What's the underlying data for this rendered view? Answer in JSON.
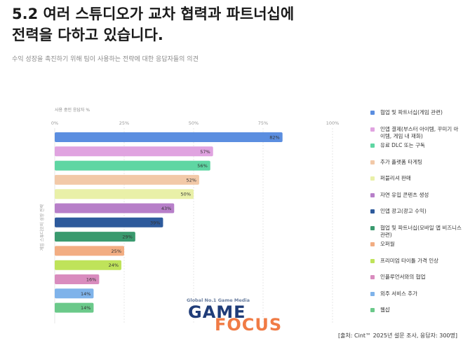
{
  "header": {
    "title": "5.2 여러 스튜디오가 교차 협력과 파트너십에 전력을 다하고 있습니다.",
    "subtitle": "수익 성장을 촉진하기 위해 팀이 사용하는 전략에 대한 응답자들의 의견"
  },
  "chart_data": {
    "type": "bar",
    "orientation": "horizontal",
    "xlabel": "사용 중인 응답자 %",
    "ylabel": "게임 스튜디오의 성장 전략",
    "xlim": [
      0,
      100
    ],
    "xticks": [
      "0%",
      "25%",
      "50%",
      "75%",
      "100%"
    ],
    "grid": true,
    "legend_position": "right",
    "categories": [
      "협업 및 파트너십(게임 관련)",
      "인앱 결제(부스터 아이템, 꾸미기 아이템, 게임 내 재화)",
      "유료 DLC 또는 구독",
      "추가 플랫폼 타게팅",
      "퍼블리셔 판매",
      "자연 유입 콘텐츠 생성",
      "인앱 광고(광고 수익)",
      "협업 및 파트너십(모바일 앱 비즈니스 관련)",
      "오퍼월",
      "프리미엄 타이틀 가격 인상",
      "인플루언서와의 협업",
      "외주 서비스 추가",
      "웹샵"
    ],
    "values": [
      82,
      57,
      56,
      52,
      50,
      43,
      39,
      29,
      25,
      24,
      16,
      14,
      14
    ],
    "labels": [
      "82%",
      "57%",
      "56%",
      "52%",
      "50%",
      "43%",
      "39%",
      "29%",
      "25%",
      "24%",
      "16%",
      "14%",
      "14%"
    ],
    "colors": [
      "#5b8ee0",
      "#e0a3e0",
      "#5fd6a3",
      "#f2c9a8",
      "#e9f0a8",
      "#b77fc9",
      "#2d5a9c",
      "#3a9a6e",
      "#f2ad82",
      "#bfe35a",
      "#d98cbe",
      "#7fb3ea",
      "#6bc98a"
    ]
  },
  "footer": {
    "source": "[출처: Cint™ 2025년 설문 조사, 응답자: 300명]"
  },
  "watermark": {
    "tagline": "Global No.1 Game Media",
    "word1": "GAME",
    "word2": "FOCUS"
  }
}
